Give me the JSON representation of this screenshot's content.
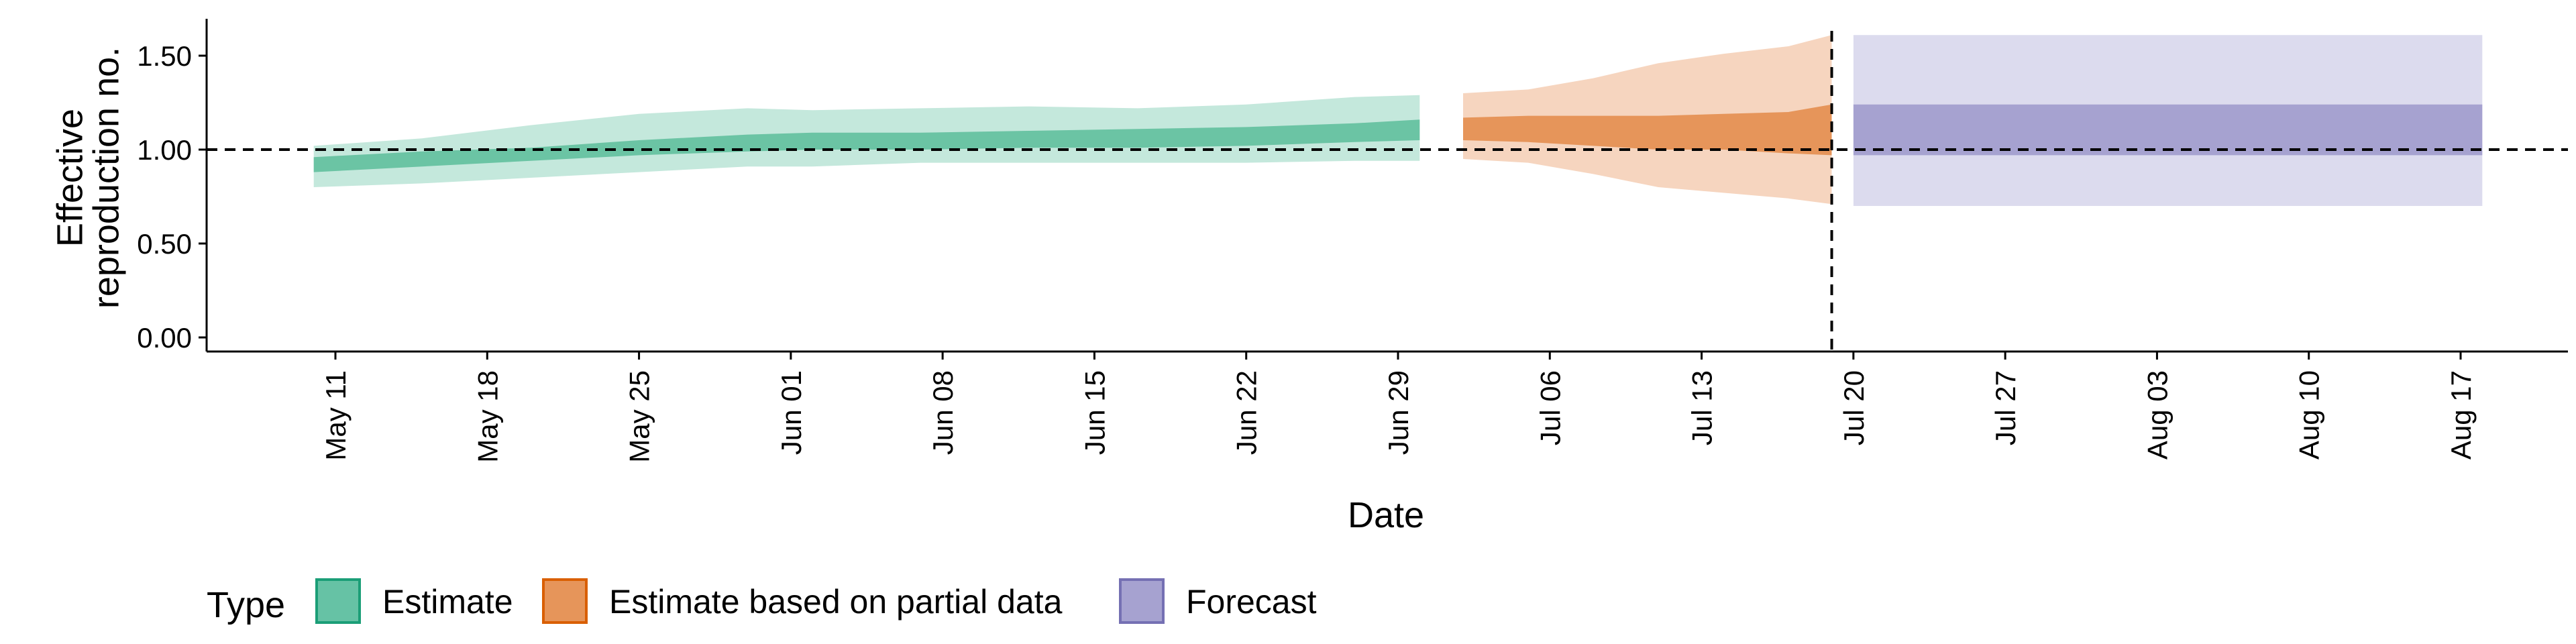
{
  "chart_data": {
    "type": "area",
    "title": "",
    "xlabel": "Date",
    "ylabel": [
      "Effective",
      "reproduction no."
    ],
    "x_tick_labels": [
      "May 11",
      "May 18",
      "May 25",
      "Jun 01",
      "Jun 08",
      "Jun 15",
      "Jun 22",
      "Jun 29",
      "Jul 06",
      "Jul 13",
      "Jul 20",
      "Jul 27",
      "Aug 03",
      "Aug 10",
      "Aug 17"
    ],
    "x_tick_dates": [
      "2020-05-11",
      "2020-05-18",
      "2020-05-25",
      "2020-06-01",
      "2020-06-08",
      "2020-06-15",
      "2020-06-22",
      "2020-06-29",
      "2020-07-06",
      "2020-07-13",
      "2020-07-20",
      "2020-07-27",
      "2020-08-03",
      "2020-08-10",
      "2020-08-17"
    ],
    "xlim": [
      "2020-05-05",
      "2020-07-28"
    ],
    "y_tick_labels": [
      "0.00",
      "0.50",
      "1.00",
      "1.50"
    ],
    "y_tick_values": [
      0,
      0.5,
      1.0,
      1.5
    ],
    "ylim": [
      -0.05,
      1.72
    ],
    "hline": 1.0,
    "vline_date": "2020-07-19",
    "legend": {
      "title": "Type",
      "position": "bottom-left",
      "entries": [
        {
          "label": "Estimate",
          "fill": "#66c2a5",
          "border": "#1b9e77"
        },
        {
          "label": "Estimate based on partial data",
          "fill": "#e6955a",
          "border": "#d95f02"
        },
        {
          "label": "Forecast",
          "fill": "#a6a2d0",
          "border": "#7570b3"
        }
      ]
    },
    "series": [
      {
        "name": "Estimate",
        "outer_color": "#c4e8dc",
        "inner_color": "#6bc4a4",
        "points": [
          {
            "date": "2020-05-10",
            "lo90": 0.8,
            "lo50": 0.88,
            "hi50": 0.96,
            "hi90": 1.02
          },
          {
            "date": "2020-05-15",
            "lo90": 0.82,
            "lo50": 0.91,
            "hi50": 0.99,
            "hi90": 1.06
          },
          {
            "date": "2020-05-20",
            "lo90": 0.85,
            "lo50": 0.94,
            "hi50": 1.01,
            "hi90": 1.13
          },
          {
            "date": "2020-05-25",
            "lo90": 0.88,
            "lo50": 0.97,
            "hi50": 1.05,
            "hi90": 1.19
          },
          {
            "date": "2020-05-30",
            "lo90": 0.91,
            "lo50": 0.99,
            "hi50": 1.08,
            "hi90": 1.22
          },
          {
            "date": "2020-06-02",
            "lo90": 0.91,
            "lo50": 1.0,
            "hi50": 1.09,
            "hi90": 1.21
          },
          {
            "date": "2020-06-07",
            "lo90": 0.93,
            "lo50": 1.0,
            "hi50": 1.09,
            "hi90": 1.22
          },
          {
            "date": "2020-06-12",
            "lo90": 0.93,
            "lo50": 1.01,
            "hi50": 1.1,
            "hi90": 1.23
          },
          {
            "date": "2020-06-17",
            "lo90": 0.93,
            "lo50": 1.01,
            "hi50": 1.11,
            "hi90": 1.22
          },
          {
            "date": "2020-06-22",
            "lo90": 0.93,
            "lo50": 1.02,
            "hi50": 1.12,
            "hi90": 1.24
          },
          {
            "date": "2020-06-27",
            "lo90": 0.94,
            "lo50": 1.04,
            "hi50": 1.14,
            "hi90": 1.28
          },
          {
            "date": "2020-06-30",
            "lo90": 0.94,
            "lo50": 1.05,
            "hi50": 1.16,
            "hi90": 1.29
          }
        ]
      },
      {
        "name": "Estimate based on partial data",
        "outer_color": "#f6d5bf",
        "inner_color": "#e6955a",
        "points": [
          {
            "date": "2020-07-02",
            "lo90": 0.95,
            "lo50": 1.05,
            "hi50": 1.17,
            "hi90": 1.3
          },
          {
            "date": "2020-07-05",
            "lo90": 0.93,
            "lo50": 1.04,
            "hi50": 1.18,
            "hi90": 1.32
          },
          {
            "date": "2020-07-08",
            "lo90": 0.87,
            "lo50": 1.02,
            "hi50": 1.18,
            "hi90": 1.38
          },
          {
            "date": "2020-07-11",
            "lo90": 0.8,
            "lo50": 1.0,
            "hi50": 1.18,
            "hi90": 1.46
          },
          {
            "date": "2020-07-14",
            "lo90": 0.77,
            "lo50": 1.0,
            "hi50": 1.19,
            "hi90": 1.51
          },
          {
            "date": "2020-07-17",
            "lo90": 0.74,
            "lo50": 0.98,
            "hi50": 1.2,
            "hi90": 1.55
          },
          {
            "date": "2020-07-19",
            "lo90": 0.71,
            "lo50": 0.97,
            "hi50": 1.24,
            "hi90": 1.61
          }
        ]
      },
      {
        "name": "Forecast",
        "outer_color": "#dcdbee",
        "inner_color": "#a6a2d0",
        "points": [
          {
            "date": "2020-07-20",
            "lo90": 0.7,
            "lo50": 0.97,
            "hi50": 1.24,
            "hi90": 1.61
          },
          {
            "date": "2020-08-18",
            "lo90": 0.7,
            "lo50": 0.97,
            "hi50": 1.24,
            "hi90": 1.61
          }
        ]
      }
    ]
  }
}
